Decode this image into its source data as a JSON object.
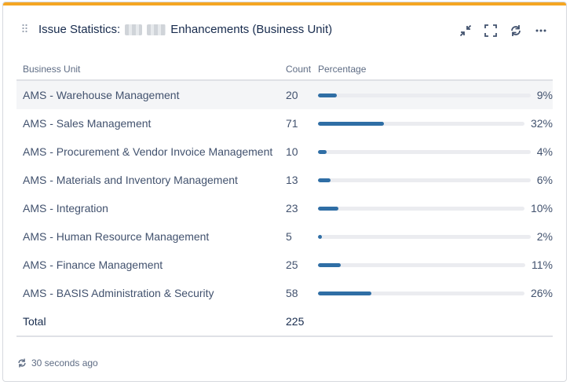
{
  "gadget": {
    "title_prefix": "Issue Statistics:",
    "title_suffix": "Enhancements (Business Unit)"
  },
  "table": {
    "headers": {
      "business_unit": "Business Unit",
      "count": "Count",
      "percentage": "Percentage"
    },
    "rows": [
      {
        "unit": "AMS - Warehouse Management",
        "count": "20",
        "percent": "9%",
        "fraction": 0.09
      },
      {
        "unit": "AMS - Sales Management",
        "count": "71",
        "percent": "32%",
        "fraction": 0.32
      },
      {
        "unit": "AMS - Procurement & Vendor Invoice Management",
        "count": "10",
        "percent": "4%",
        "fraction": 0.04
      },
      {
        "unit": "AMS - Materials and Inventory Management",
        "count": "13",
        "percent": "6%",
        "fraction": 0.06
      },
      {
        "unit": "AMS - Integration",
        "count": "23",
        "percent": "10%",
        "fraction": 0.1
      },
      {
        "unit": "AMS - Human Resource Management",
        "count": "5",
        "percent": "2%",
        "fraction": 0.02
      },
      {
        "unit": "AMS - Finance Management",
        "count": "25",
        "percent": "11%",
        "fraction": 0.11
      },
      {
        "unit": "AMS - BASIS Administration & Security",
        "count": "58",
        "percent": "26%",
        "fraction": 0.26
      }
    ],
    "total": {
      "label": "Total",
      "count": "225"
    }
  },
  "footer": {
    "updated": "30 seconds ago"
  },
  "colors": {
    "accent": "#f5a623",
    "bar": "#2f6ea5",
    "track": "#ebecf0"
  },
  "icons": {
    "drag": "drag-handle-icon",
    "minimize": "minimize-icon",
    "fullscreen": "fullscreen-icon",
    "refresh": "refresh-icon",
    "more": "more-icon"
  }
}
